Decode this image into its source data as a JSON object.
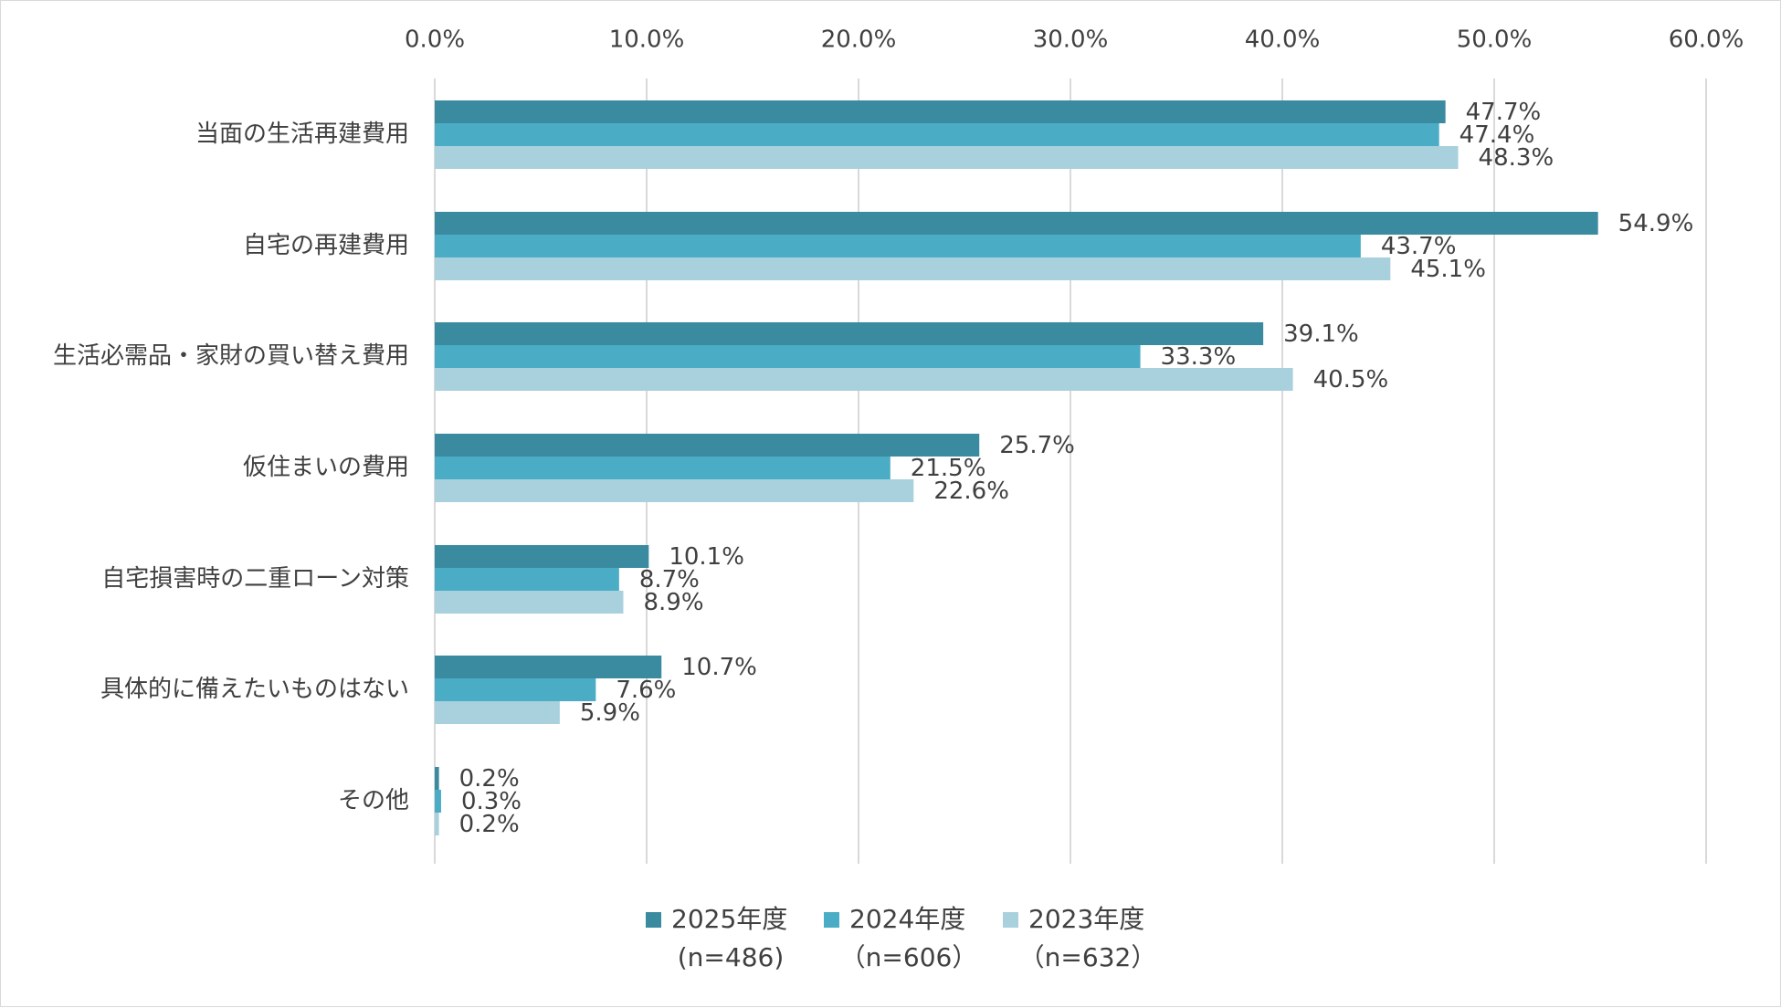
{
  "chart_data": {
    "type": "bar",
    "orientation": "horizontal",
    "categories": [
      "当面の生活再建費用",
      "自宅の再建費用",
      "生活必需品・家財の買い替え費用",
      "仮住まいの費用",
      "自宅損害時の二重ローン対策",
      "具体的に備えたいものはない",
      "その他"
    ],
    "series": [
      {
        "name": "2025年度",
        "note": "(n=486)",
        "color": "#3a8ba0",
        "values": [
          47.7,
          54.9,
          39.1,
          25.7,
          10.1,
          10.7,
          0.2
        ],
        "labels": [
          "47.7%",
          "54.9%",
          "39.1%",
          "25.7%",
          "10.1%",
          "10.7%",
          "0.2%"
        ]
      },
      {
        "name": "2024年度",
        "note": "（n=606）",
        "color": "#4bacc6",
        "values": [
          47.4,
          43.7,
          33.3,
          21.5,
          8.7,
          7.6,
          0.3
        ],
        "labels": [
          "47.4%",
          "43.7%",
          "33.3%",
          "21.5%",
          "8.7%",
          "7.6%",
          "0.3%"
        ]
      },
      {
        "name": "2023年度",
        "note": "（n=632）",
        "color": "#a9d1dd",
        "values": [
          48.3,
          45.1,
          40.5,
          22.6,
          8.9,
          5.9,
          0.2
        ],
        "labels": [
          "48.3%",
          "45.1%",
          "40.5%",
          "22.6%",
          "8.9%",
          "5.9%",
          "0.2%"
        ]
      }
    ],
    "x_ticks": [
      "0.0%",
      "10.0%",
      "20.0%",
      "30.0%",
      "40.0%",
      "50.0%",
      "60.0%"
    ],
    "xlim": [
      0,
      60
    ],
    "axis_position": "top",
    "grid": true,
    "legend_position": "bottom"
  }
}
